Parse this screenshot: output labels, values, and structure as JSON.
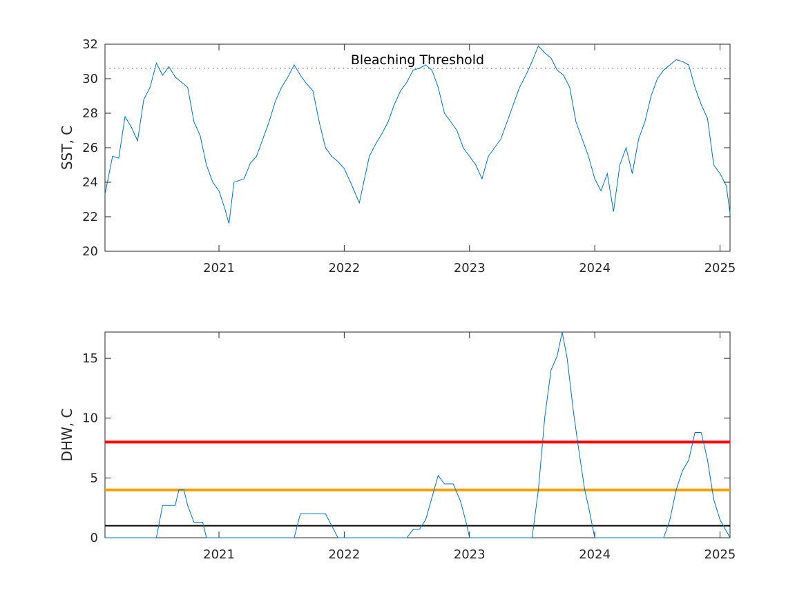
{
  "colors": {
    "series": "#0072BD",
    "threshold_dotted": "#7B7BD6",
    "alert_level_2": "#FF0000",
    "alert_level_1": "#F5A000",
    "watch": "#000000",
    "axes": "#262626"
  },
  "chart_data": [
    {
      "type": "line",
      "xlim": [
        2020.09,
        2025.08
      ],
      "ylim": [
        20,
        32
      ],
      "ylabel": "SST, C",
      "x_ticks": [
        2021,
        2022,
        2023,
        2024,
        2025
      ],
      "x_tick_labels": [
        "2021",
        "2022",
        "2023",
        "2024",
        "2025"
      ],
      "y_ticks": [
        20,
        22,
        24,
        26,
        28,
        30,
        32
      ],
      "y_tick_labels": [
        "20",
        "22",
        "24",
        "26",
        "28",
        "30",
        "32"
      ],
      "threshold": {
        "y": 30.6,
        "label": "Bleaching Threshold",
        "style": "dotted"
      },
      "series": [
        {
          "x": [
            2020.09,
            2020.15,
            2020.2,
            2020.25,
            2020.3,
            2020.35,
            2020.4,
            2020.45,
            2020.5,
            2020.55,
            2020.6,
            2020.65,
            2020.7,
            2020.75,
            2020.8,
            2020.85,
            2020.9,
            2020.95,
            2021.0,
            2021.05,
            2021.08,
            2021.12,
            2021.2,
            2021.25,
            2021.3,
            2021.35,
            2021.4,
            2021.45,
            2021.5,
            2021.55,
            2021.6,
            2021.65,
            2021.7,
            2021.75,
            2021.8,
            2021.85,
            2021.9,
            2021.95,
            2022.0,
            2022.05,
            2022.12,
            2022.2,
            2022.25,
            2022.3,
            2022.35,
            2022.4,
            2022.45,
            2022.5,
            2022.55,
            2022.6,
            2022.65,
            2022.7,
            2022.75,
            2022.8,
            2022.85,
            2022.9,
            2022.95,
            2023.0,
            2023.05,
            2023.1,
            2023.15,
            2023.2,
            2023.25,
            2023.3,
            2023.35,
            2023.4,
            2023.45,
            2023.5,
            2023.55,
            2023.6,
            2023.65,
            2023.7,
            2023.75,
            2023.8,
            2023.85,
            2023.9,
            2023.95,
            2024.0,
            2024.05,
            2024.1,
            2024.15,
            2024.2,
            2024.25,
            2024.3,
            2024.35,
            2024.4,
            2024.45,
            2024.5,
            2024.55,
            2024.6,
            2024.65,
            2024.7,
            2024.75,
            2024.8,
            2024.85,
            2024.9,
            2024.95,
            2025.0,
            2025.05,
            2025.08
          ],
          "values": [
            23.3,
            25.5,
            25.4,
            27.8,
            27.2,
            26.4,
            28.8,
            29.5,
            30.9,
            30.2,
            30.7,
            30.1,
            29.8,
            29.5,
            27.5,
            26.7,
            25.0,
            24.0,
            23.5,
            22.4,
            21.6,
            24.0,
            24.2,
            25.1,
            25.5,
            26.5,
            27.5,
            28.7,
            29.5,
            30.1,
            30.8,
            30.2,
            29.7,
            29.3,
            27.5,
            26.0,
            25.5,
            25.2,
            24.8,
            24.0,
            22.8,
            25.5,
            26.2,
            26.8,
            27.5,
            28.5,
            29.3,
            29.8,
            30.5,
            30.6,
            30.8,
            30.5,
            29.5,
            28.0,
            27.5,
            27.0,
            26.0,
            25.5,
            25.0,
            24.2,
            25.5,
            26.0,
            26.5,
            27.5,
            28.5,
            29.5,
            30.2,
            31.0,
            31.9,
            31.5,
            31.2,
            30.5,
            30.2,
            29.5,
            27.5,
            26.5,
            25.5,
            24.2,
            23.5,
            24.5,
            22.3,
            25.0,
            26.0,
            24.5,
            26.5,
            27.5,
            29.0,
            30.0,
            30.5,
            30.8,
            31.1,
            31.0,
            30.8,
            29.5,
            28.5,
            27.7,
            25.0,
            24.5,
            23.8,
            22.2
          ]
        }
      ]
    },
    {
      "type": "line",
      "xlim": [
        2020.09,
        2025.08
      ],
      "ylim": [
        0,
        17.2
      ],
      "ylabel": "DHW, C",
      "x_ticks": [
        2021,
        2022,
        2023,
        2024,
        2025
      ],
      "x_tick_labels": [
        "2021",
        "2022",
        "2023",
        "2024",
        "2025"
      ],
      "y_ticks": [
        0,
        5,
        10,
        15
      ],
      "y_tick_labels": [
        "0",
        "5",
        "10",
        "15"
      ],
      "reference_lines": [
        {
          "y": 8,
          "color": "#FF0000"
        },
        {
          "y": 4,
          "color": "#F5A000"
        },
        {
          "y": 1,
          "color": "#000000"
        }
      ],
      "series": [
        {
          "x": [
            2020.09,
            2020.5,
            2020.55,
            2020.65,
            2020.68,
            2020.72,
            2020.75,
            2020.8,
            2020.87,
            2020.9,
            2020.95,
            2021.6,
            2021.65,
            2021.85,
            2021.9,
            2021.95,
            2022.5,
            2022.55,
            2022.6,
            2022.65,
            2022.75,
            2022.8,
            2022.87,
            2022.93,
            2022.98,
            2023.0,
            2023.5,
            2023.55,
            2023.6,
            2023.65,
            2023.7,
            2023.74,
            2023.78,
            2023.83,
            2023.87,
            2023.92,
            2023.95,
            2024.0,
            2024.05,
            2024.55,
            2024.6,
            2024.65,
            2024.7,
            2024.75,
            2024.8,
            2024.85,
            2024.9,
            2024.95,
            2025.0,
            2025.08
          ],
          "values": [
            0,
            0,
            2.7,
            2.7,
            4.0,
            4.0,
            2.7,
            1.3,
            1.3,
            0,
            0,
            0,
            2.0,
            2.0,
            1.0,
            0,
            0,
            0.7,
            0.7,
            1.5,
            5.2,
            4.5,
            4.5,
            3.0,
            1.0,
            0,
            0,
            4.0,
            10.0,
            14.0,
            15.2,
            17.2,
            15.0,
            10.5,
            7.5,
            4.0,
            2.6,
            0,
            0,
            0,
            1.5,
            4.0,
            5.6,
            6.5,
            8.8,
            8.8,
            6.5,
            3.2,
            1.5,
            0
          ]
        }
      ]
    }
  ]
}
